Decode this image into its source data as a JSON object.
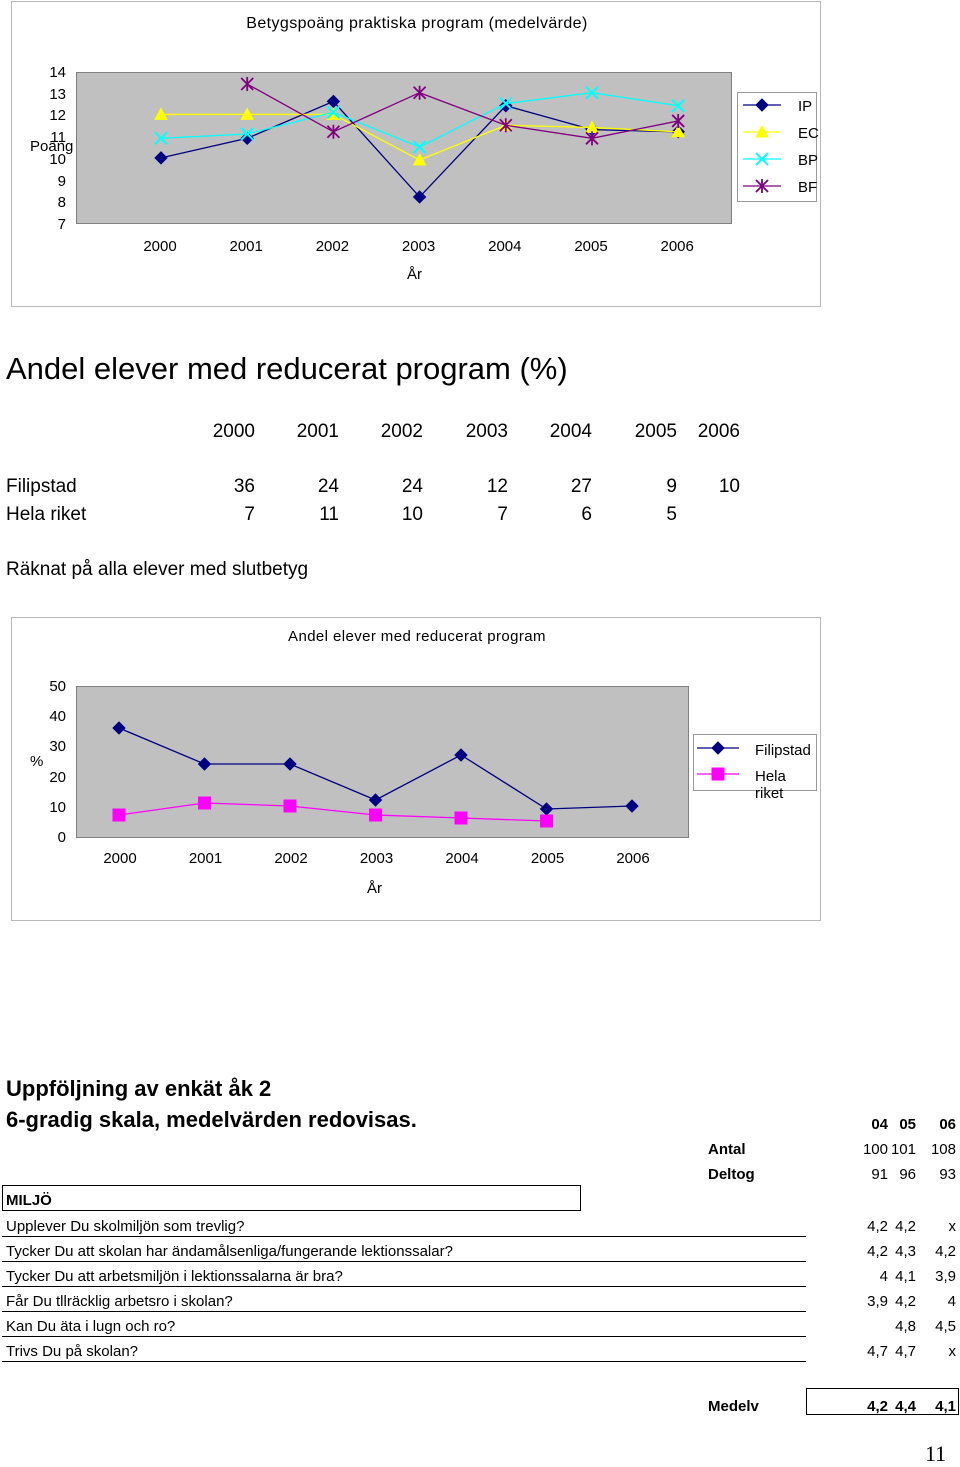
{
  "chart1": {
    "title": "Betygspoäng praktiska program (medelvärde)",
    "ylabel": "Poäng",
    "xlabel": "År",
    "yticks": [
      "14",
      "13",
      "12",
      "11",
      "10",
      "9",
      "8",
      "7"
    ],
    "xticks": [
      "2000",
      "2001",
      "2002",
      "2003",
      "2004",
      "2005",
      "2006"
    ],
    "legend": [
      "IP",
      "EC",
      "BP",
      "BF"
    ]
  },
  "reduced": {
    "heading": "Andel elever med reducerat program (%)",
    "years": [
      "2000",
      "2001",
      "2002",
      "2003",
      "2004",
      "2005",
      "2006"
    ],
    "rows": [
      {
        "label": "Filipstad",
        "values": [
          "36",
          "24",
          "24",
          "12",
          "27",
          "9",
          "10"
        ]
      },
      {
        "label": "Hela riket",
        "values": [
          "7",
          "11",
          "10",
          "7",
          "6",
          "5",
          ""
        ]
      }
    ],
    "note": "Räknat på alla elever med slutbetyg"
  },
  "chart2": {
    "title": "Andel elever med reducerat program",
    "ylabel": "%",
    "xlabel": "År",
    "yticks": [
      "50",
      "40",
      "30",
      "20",
      "10",
      "0"
    ],
    "xticks": [
      "2000",
      "2001",
      "2002",
      "2003",
      "2004",
      "2005",
      "2006"
    ],
    "legend": [
      "Filipstad",
      "Hela riket"
    ]
  },
  "survey": {
    "title_line1": "Uppföljning av enkät åk 2",
    "title_line2": "6-gradig skala, medelvärden redovisas.",
    "years": [
      "04",
      "05",
      "06"
    ],
    "antal_label": "Antal",
    "antal": [
      "100",
      "101",
      "108"
    ],
    "deltog_label": "Deltog",
    "deltog": [
      "91",
      "96",
      "93"
    ],
    "section": "MILJÖ",
    "questions": [
      {
        "q": "Upplever Du skolmiljön som trevlig?",
        "v": [
          "4,2",
          "4,2",
          "x"
        ]
      },
      {
        "q": "Tycker Du att skolan har ändamålsenliga/fungerande lektionssalar?",
        "v": [
          "4,2",
          "4,3",
          "4,2"
        ]
      },
      {
        "q": "Tycker Du att arbetsmiljön i lektionssalarna är bra?",
        "v": [
          "4",
          "4,1",
          "3,9"
        ]
      },
      {
        "q": "Får Du tllräcklig arbetsro i skolan?",
        "v": [
          "3,9",
          "4,2",
          "4"
        ]
      },
      {
        "q": "Kan Du äta i lugn och ro?",
        "v": [
          "",
          "4,8",
          "4,5"
        ]
      },
      {
        "q": "Trivs Du på skolan?",
        "v": [
          "4,7",
          "4,7",
          "x"
        ]
      }
    ],
    "medelv_label": "Medelv",
    "medelv": [
      "4,2",
      "4,4",
      "4,1"
    ]
  },
  "page_number": "11",
  "chart_data": [
    {
      "type": "line",
      "title": "Betygspoäng praktiska program (medelvärde)",
      "xlabel": "År",
      "ylabel": "Poäng",
      "categories": [
        "2000",
        "2001",
        "2002",
        "2003",
        "2004",
        "2005",
        "2006"
      ],
      "ylim": [
        7,
        14
      ],
      "grid": false,
      "legend": "right",
      "series": [
        {
          "name": "IP",
          "color": "#000080",
          "marker": "diamond",
          "values": [
            10.0,
            10.9,
            12.6,
            8.2,
            12.4,
            11.3,
            11.2
          ]
        },
        {
          "name": "EC",
          "color": "#ffff00",
          "marker": "triangle",
          "values": [
            12.0,
            12.0,
            12.0,
            9.9,
            11.5,
            11.4,
            11.2
          ]
        },
        {
          "name": "BP",
          "color": "#00ffff",
          "marker": "x",
          "values": [
            10.9,
            11.1,
            12.1,
            10.5,
            12.5,
            13.0,
            12.4
          ]
        },
        {
          "name": "BF",
          "color": "#800080",
          "marker": "star",
          "values": [
            null,
            13.4,
            11.2,
            13.0,
            11.5,
            10.9,
            11.7
          ]
        }
      ]
    },
    {
      "type": "line",
      "title": "Andel elever med reducerat program",
      "xlabel": "År",
      "ylabel": "%",
      "categories": [
        "2000",
        "2001",
        "2002",
        "2003",
        "2004",
        "2005",
        "2006"
      ],
      "ylim": [
        0,
        50
      ],
      "grid": false,
      "legend": "right",
      "series": [
        {
          "name": "Filipstad",
          "color": "#000080",
          "marker": "diamond",
          "values": [
            36,
            24,
            24,
            12,
            27,
            9,
            10
          ]
        },
        {
          "name": "Hela riket",
          "color": "#ff00ff",
          "marker": "square",
          "values": [
            7,
            11,
            10,
            7,
            6,
            5,
            null
          ]
        }
      ]
    }
  ]
}
